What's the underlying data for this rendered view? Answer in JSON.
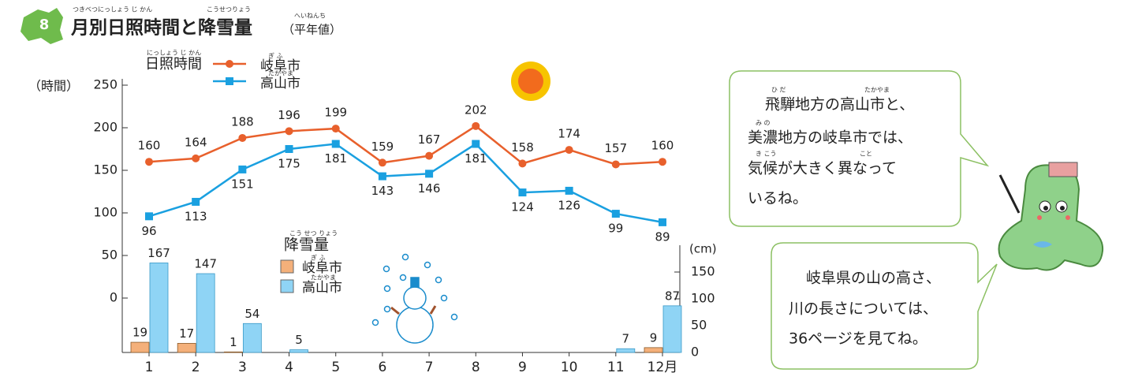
{
  "header": {
    "number": "8",
    "title": "月別日照時間と降雪量",
    "title_ruby": [
      "つきべつにっしょう じ かん",
      "こうせつりょう"
    ],
    "note": "（平年値）",
    "note_ruby": "へいねんち"
  },
  "chart_data": [
    {
      "type": "line",
      "legend_title": "日照時間",
      "legend_title_ruby": "にっしょう じ かん",
      "y_label": "（時間）",
      "ylim": [
        0,
        250
      ],
      "yticks": [
        0,
        50,
        100,
        150,
        200,
        250
      ],
      "series": [
        {
          "name": "岐阜市",
          "name_ruby": "ぎ ふ",
          "color": "#e8602c",
          "values": [
            160,
            164,
            188,
            196,
            199,
            159,
            167,
            202,
            158,
            174,
            157,
            160
          ]
        },
        {
          "name": "高山市",
          "name_ruby": "たかやま",
          "color": "#1aa0e0",
          "values": [
            96,
            113,
            151,
            175,
            181,
            143,
            146,
            181,
            124,
            126,
            99,
            89
          ]
        }
      ]
    },
    {
      "type": "bar",
      "legend_title": "降雪量",
      "legend_title_ruby": "こう せつ りょう",
      "y_label": "(cm)",
      "categories": [
        "1",
        "2",
        "3",
        "4",
        "5",
        "6",
        "7",
        "8",
        "9",
        "10",
        "11",
        "12月"
      ],
      "ylim": [
        0,
        200
      ],
      "yticks": [
        0,
        50,
        100,
        150
      ],
      "series": [
        {
          "name": "岐阜市",
          "name_ruby": "ぎ ふ",
          "color": "#f4b07a",
          "values": [
            19,
            17,
            1,
            0,
            0,
            0,
            0,
            0,
            0,
            0,
            0,
            9
          ]
        },
        {
          "name": "高山市",
          "name_ruby": "たかやま",
          "color": "#8fd4f5",
          "values": [
            167,
            147,
            54,
            5,
            0,
            0,
            0,
            0,
            0,
            0,
            7,
            87
          ]
        }
      ]
    }
  ],
  "bubbles": [
    {
      "lines": [
        "飛騨地方の高山市と、",
        "美濃地方の岐阜市では、",
        "気候が大きく異なって",
        "いるね。"
      ],
      "ruby": [
        "ひ だ",
        "たかやま",
        "み の",
        "き こう",
        "こと"
      ]
    },
    {
      "lines": [
        "岐阜県の山の高さ、",
        "川の長さについては、",
        "36ページを見てね。"
      ]
    }
  ]
}
